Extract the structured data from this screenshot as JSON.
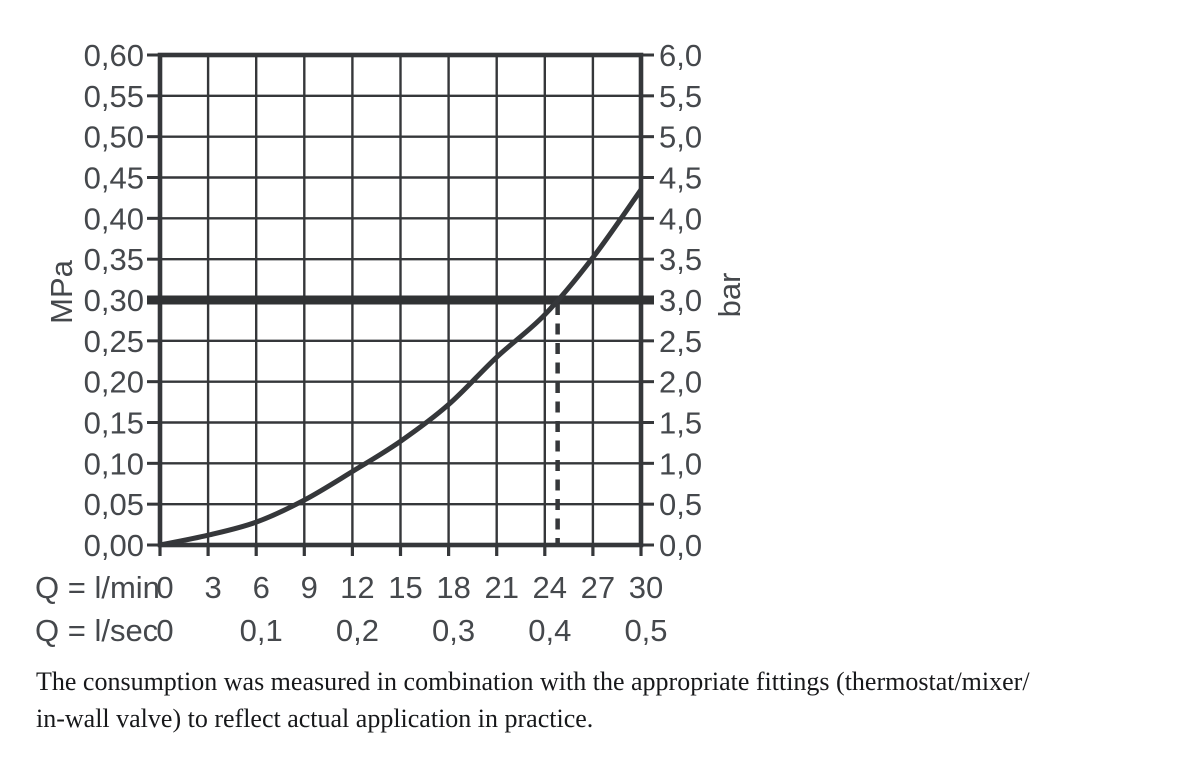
{
  "chart_data": {
    "type": "line",
    "title": "",
    "grid": true,
    "x_axis": {
      "min": 0,
      "max": 30,
      "gridline_step": 3,
      "rows": [
        {
          "label": "Q = l/min",
          "ticks": [
            [
              0,
              "0"
            ],
            [
              3,
              "3"
            ],
            [
              6,
              "6"
            ],
            [
              9,
              "9"
            ],
            [
              12,
              "12"
            ],
            [
              15,
              "15"
            ],
            [
              18,
              "18"
            ],
            [
              21,
              "21"
            ],
            [
              24,
              "24"
            ],
            [
              27,
              "27"
            ],
            [
              30,
              "30"
            ]
          ]
        },
        {
          "label": "Q = l/sec",
          "ticks": [
            [
              0,
              "0"
            ],
            [
              6,
              "0,1"
            ],
            [
              12,
              "0,2"
            ],
            [
              18,
              "0,3"
            ],
            [
              24,
              "0,4"
            ],
            [
              30,
              "0,5"
            ]
          ]
        }
      ]
    },
    "y_axis_left": {
      "label": "MPa",
      "min": 0,
      "max": 0.6,
      "step": 0.05,
      "tick_labels": [
        "0,00",
        "0,05",
        "0,10",
        "0,15",
        "0,20",
        "0,25",
        "0,30",
        "0,35",
        "0,40",
        "0,45",
        "0,50",
        "0,55",
        "0,60"
      ]
    },
    "y_axis_right": {
      "label": "bar",
      "min": 0,
      "max": 6,
      "step": 0.5,
      "tick_labels": [
        "0,0",
        "0,5",
        "1,0",
        "1,5",
        "2,0",
        "2,5",
        "3,0",
        "3,5",
        "4,0",
        "4,5",
        "5,0",
        "5,5",
        "6,0"
      ]
    },
    "series": [
      {
        "name": "flow-pressure-curve",
        "x_lmin": [
          0,
          3,
          6,
          9,
          12,
          15,
          18,
          21,
          24,
          27,
          30
        ],
        "y_mpa": [
          0,
          0.012,
          0.028,
          0.055,
          0.09,
          0.127,
          0.172,
          0.23,
          0.282,
          0.352,
          0.435
        ]
      }
    ],
    "reference_line": {
      "orientation": "horizontal",
      "value_mpa": 0.3,
      "value_bar": 3.0
    },
    "marker_line": {
      "orientation": "vertical-dashed",
      "x_lmin": 24.8,
      "from_mpa": 0.3,
      "to_mpa": 0
    },
    "colors": {
      "line": "#35373a",
      "reference_line": "#303234",
      "label": "#45484c",
      "background": "#ffffff"
    }
  },
  "caption": {
    "line1": "The consumption was measured in combination with the appropriate fittings (thermostat/mixer/",
    "line2": "in-wall valve) to reflect actual application in practice."
  }
}
